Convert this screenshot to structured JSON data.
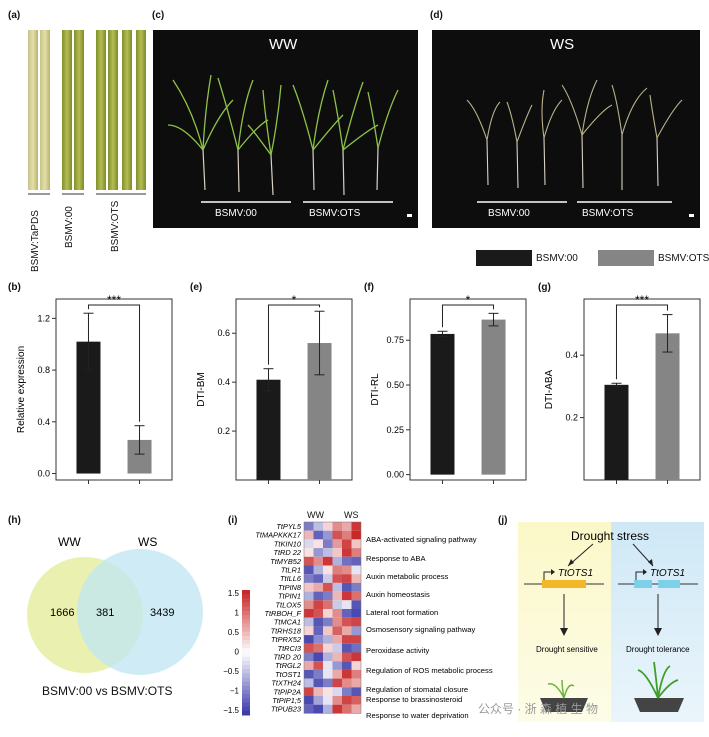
{
  "panels": {
    "a": {
      "label": "(a)",
      "leaves": [
        "BSMV:TaPDS",
        "BSMV:00",
        "BSMV:OTS"
      ]
    },
    "c": {
      "label": "(c)",
      "title": "WW",
      "groups": [
        "BSMV:00",
        "BSMV:OTS"
      ]
    },
    "d": {
      "label": "(d)",
      "title": "WS",
      "groups": [
        "BSMV:00",
        "BSMV:OTS"
      ]
    },
    "b": {
      "label": "(b)"
    },
    "e": {
      "label": "(e)"
    },
    "f": {
      "label": "(f)"
    },
    "g": {
      "label": "(g)"
    },
    "h": {
      "label": "(h)",
      "set_a": "WW",
      "set_b": "WS",
      "only_a": "1666",
      "both": "381",
      "only_b": "3439",
      "caption": "BSMV:00 vs BSMV:OTS"
    },
    "i": {
      "label": "(i)",
      "columns": [
        "WW",
        "WS"
      ],
      "genes": [
        "TtPYL5",
        "TtMAPKKK17",
        "TtKIN10",
        "TtRD 22",
        "TtMYB52",
        "TtLR1",
        "TtILL6",
        "TtPIN8",
        "TtPIN1",
        "TtLOX5",
        "TtRBOH_F",
        "TtMCA1",
        "TtRHS18",
        "TtPRX52",
        "TtRCI3",
        "TtRD 20",
        "TtRGL2",
        "TtOST1",
        "TtXTH24",
        "TtPIP2A",
        "TtPIP1;5",
        "TtPUB23"
      ],
      "terms": [
        "ABA-activated signaling pathway",
        "Response to ABA",
        "Auxin metabolic process",
        "Auxin homeostasis",
        "Lateral root formation",
        "Osmosensory signaling pathway",
        "Peroxidase activity",
        "Regulation of ROS metabolic process",
        "Regulation of stomatal closure",
        "Response to brassinosteroid",
        "Response to water deprivation"
      ],
      "scale_ticks": [
        "1.5",
        "1",
        "0.5",
        "0",
        "−0.5",
        "−1",
        "−1.5"
      ]
    },
    "j": {
      "label": "(j)",
      "stress": "Drought stress",
      "gene_left": "TtOTS1",
      "gene_right": "TtOTS1",
      "result_left": "Drought sensitive",
      "result_right": "Drought tolerance"
    }
  },
  "legend": {
    "series": [
      "BSMV:00",
      "BSMV:OTS"
    ],
    "colors": [
      "#1a1a1a",
      "#858585"
    ]
  },
  "watermark": "公众号 · 浙 森 植 生 物",
  "chart_data": [
    {
      "type": "bar",
      "panel": "b",
      "categories": [
        "BSMV:00",
        "BSMV:OTS"
      ],
      "values": [
        1.02,
        0.26
      ],
      "errors": [
        0.22,
        0.11
      ],
      "ylabel": "Relative expression",
      "ylim": [
        -0.05,
        1.35
      ],
      "yticks": [
        "0.0",
        "0.4",
        "0.8",
        "1.2"
      ],
      "yticks_v": [
        0,
        0.4,
        0.8,
        1.2
      ],
      "signif": "***"
    },
    {
      "type": "bar",
      "panel": "e",
      "categories": [
        "BSMV:00",
        "BSMV:OTS"
      ],
      "values": [
        0.41,
        0.56
      ],
      "errors": [
        0.045,
        0.13
      ],
      "ylabel": "DTI-BM",
      "ylim": [
        0,
        0.74
      ],
      "yticks": [
        "0.2",
        "0.4",
        "0.6"
      ],
      "yticks_v": [
        0.2,
        0.4,
        0.6
      ],
      "signif": "*"
    },
    {
      "type": "bar",
      "panel": "f",
      "categories": [
        "BSMV:00",
        "BSMV:OTS"
      ],
      "values": [
        0.785,
        0.865
      ],
      "errors": [
        0.015,
        0.035
      ],
      "ylabel": "DTI-RL",
      "ylim": [
        -0.03,
        0.98
      ],
      "yticks": [
        "0.00",
        "0.25",
        "0.50",
        "0.75"
      ],
      "yticks_v": [
        0,
        0.25,
        0.5,
        0.75
      ],
      "signif": "*"
    },
    {
      "type": "bar",
      "panel": "g",
      "categories": [
        "BSMV:00",
        "BSMV:OTS"
      ],
      "values": [
        0.305,
        0.47
      ],
      "errors": [
        0.005,
        0.06
      ],
      "ylabel": "DTI-ABA",
      "ylim": [
        0,
        0.58
      ],
      "yticks": [
        "0.2",
        "0.4"
      ],
      "yticks_v": [
        0.2,
        0.4
      ],
      "signif": "***"
    }
  ]
}
